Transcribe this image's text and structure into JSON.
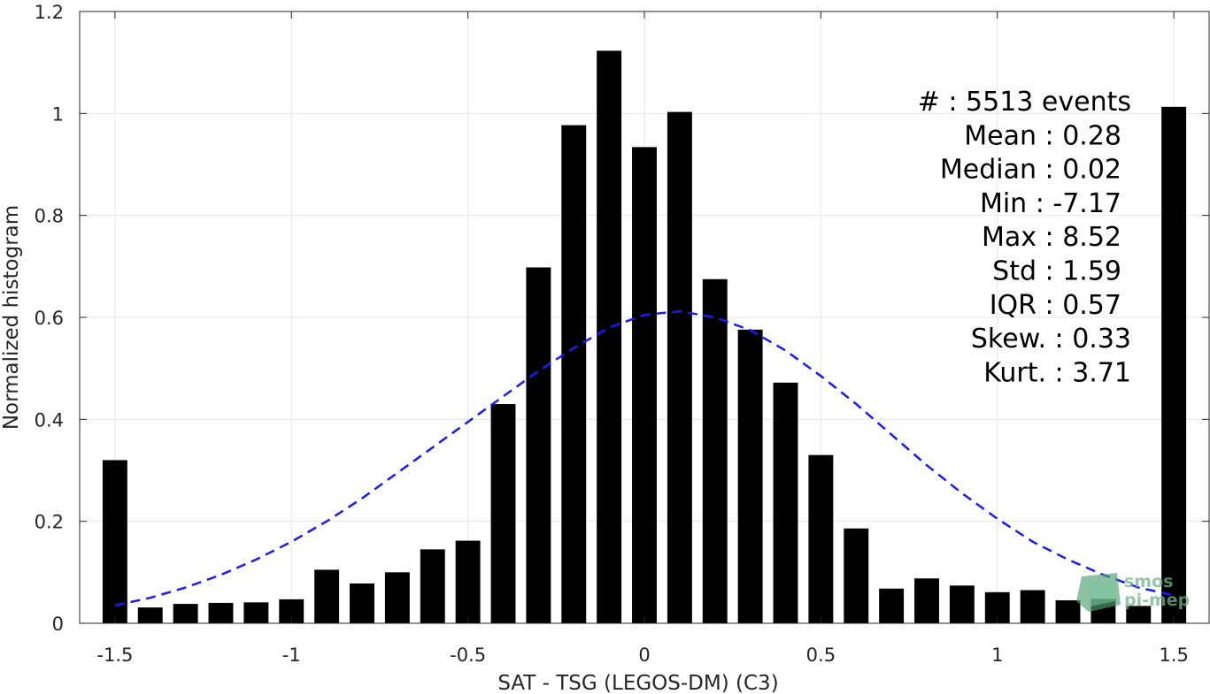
{
  "chart_data": {
    "type": "bar",
    "xlabel": "SAT - TSG (LEGOS-DM) (C3)",
    "ylabel": "Normalized histogram",
    "xlim": [
      -1.6,
      1.6
    ],
    "ylim": [
      0,
      1.2
    ],
    "xticks": [
      -1.5,
      -1,
      -0.5,
      0,
      0.5,
      1,
      1.5
    ],
    "xtick_labels": [
      "-1.5",
      "-1",
      "-0.5",
      "0",
      "0.5",
      "1",
      "1.5"
    ],
    "yticks": [
      0,
      0.2,
      0.4,
      0.6,
      0.8,
      1,
      1.2
    ],
    "ytick_labels": [
      "0",
      "0.2",
      "0.4",
      "0.6",
      "0.8",
      "1",
      "1.2"
    ],
    "grid": true,
    "bar_width": 0.07,
    "bar_color": "#000000",
    "bars": {
      "x": [
        -1.5,
        -1.4,
        -1.3,
        -1.2,
        -1.1,
        -1.0,
        -0.9,
        -0.8,
        -0.7,
        -0.6,
        -0.5,
        -0.4,
        -0.3,
        -0.2,
        -0.1,
        0.0,
        0.1,
        0.2,
        0.3,
        0.4,
        0.5,
        0.6,
        0.7,
        0.8,
        0.9,
        1.0,
        1.1,
        1.2,
        1.3,
        1.4,
        1.5
      ],
      "values": [
        0.32,
        0.031,
        0.038,
        0.04,
        0.041,
        0.047,
        0.105,
        0.078,
        0.1,
        0.145,
        0.162,
        0.43,
        0.698,
        0.977,
        1.123,
        0.934,
        1.003,
        0.675,
        0.576,
        0.472,
        0.33,
        0.186,
        0.068,
        0.088,
        0.074,
        0.061,
        0.065,
        0.045,
        0.048,
        0.034,
        1.013
      ]
    },
    "fit_curve": {
      "style": "dashed",
      "color": "#1a1aff",
      "x": [
        -1.5,
        -1.4,
        -1.3,
        -1.2,
        -1.1,
        -1.0,
        -0.9,
        -0.8,
        -0.7,
        -0.6,
        -0.5,
        -0.4,
        -0.3,
        -0.2,
        -0.1,
        0.0,
        0.1,
        0.2,
        0.3,
        0.4,
        0.5,
        0.6,
        0.7,
        0.8,
        0.9,
        1.0,
        1.1,
        1.2,
        1.3,
        1.4,
        1.5
      ],
      "y": [
        0.035,
        0.05,
        0.07,
        0.095,
        0.125,
        0.16,
        0.2,
        0.245,
        0.295,
        0.345,
        0.395,
        0.445,
        0.495,
        0.54,
        0.58,
        0.605,
        0.612,
        0.6,
        0.575,
        0.535,
        0.485,
        0.43,
        0.37,
        0.31,
        0.255,
        0.205,
        0.16,
        0.125,
        0.095,
        0.07,
        0.055
      ]
    },
    "stats": [
      {
        "label": "#  : 5513 events"
      },
      {
        "label": "Mean : 0.28"
      },
      {
        "label": "Median : 0.02"
      },
      {
        "label": "Min : -7.17"
      },
      {
        "label": "Max : 8.52"
      },
      {
        "label": "Std : 1.59"
      },
      {
        "label": "IQR : 0.57"
      },
      {
        "label": "Skew. : 0.33"
      },
      {
        "label": "Kurt. : 3.71"
      }
    ]
  },
  "logo": {
    "line1": "smos",
    "line2": "pi-mep"
  }
}
